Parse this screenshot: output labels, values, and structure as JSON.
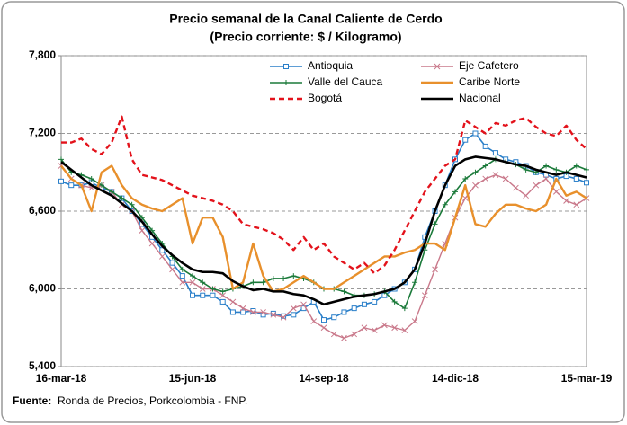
{
  "chart_data": {
    "type": "line",
    "title": "Precio semanal de la Canal Caliente de Cerdo",
    "subtitle": "(Precio corriente: $ / Kilogramo)",
    "source_label": "Fuente:",
    "source": "Ronda de Precios, Porkcolombia  - FNP.",
    "categories": [
      "16-mar-18",
      null,
      null,
      null,
      null,
      null,
      null,
      null,
      null,
      null,
      null,
      null,
      null,
      "15-jun-18",
      null,
      null,
      null,
      null,
      null,
      null,
      null,
      null,
      null,
      null,
      null,
      null,
      "14-sep-18",
      null,
      null,
      null,
      null,
      null,
      null,
      null,
      null,
      null,
      null,
      null,
      null,
      "14-dic-18",
      null,
      null,
      null,
      null,
      null,
      null,
      null,
      null,
      null,
      null,
      null,
      null,
      "15-mar-19"
    ],
    "ylim": [
      5400,
      7800
    ],
    "yticks": [
      {
        "value": 5400,
        "label": "5,400"
      },
      {
        "value": 6000,
        "label": "6,000"
      },
      {
        "value": 6600,
        "label": "6,600"
      },
      {
        "value": 7200,
        "label": "7,200"
      },
      {
        "value": 7800,
        "label": "7,800"
      }
    ],
    "grid": true,
    "legend": "top-right",
    "series": [
      {
        "name": "Antioquia",
        "color": "#2a7fc9",
        "marker": "square",
        "dash": false,
        "width": 1.6,
        "values": [
          6830,
          6800,
          6800,
          6820,
          6780,
          6750,
          6700,
          6600,
          6500,
          6400,
          6300,
          6200,
          6100,
          5950,
          5950,
          5950,
          5900,
          5820,
          5820,
          5830,
          5800,
          5810,
          5790,
          5800,
          5850,
          5900,
          5760,
          5780,
          5820,
          5850,
          5880,
          5900,
          5950,
          6000,
          6050,
          6150,
          6400,
          6600,
          6800,
          7000,
          7150,
          7200,
          7100,
          7050,
          7000,
          6980,
          6950,
          6900,
          6880,
          6850,
          6870,
          6850,
          6820
        ]
      },
      {
        "name": "Eje Cafetero",
        "color": "#c9788a",
        "marker": "x",
        "dash": false,
        "width": 1.4,
        "values": [
          6950,
          6850,
          6800,
          6780,
          6800,
          6750,
          6650,
          6600,
          6450,
          6350,
          6250,
          6150,
          6050,
          6050,
          6000,
          6000,
          5950,
          5900,
          5850,
          5820,
          5820,
          5800,
          5780,
          5850,
          5880,
          5750,
          5700,
          5650,
          5620,
          5650,
          5700,
          5680,
          5720,
          5700,
          5680,
          5750,
          5950,
          6150,
          6350,
          6550,
          6700,
          6800,
          6850,
          6880,
          6850,
          6780,
          6720,
          6800,
          6850,
          6750,
          6680,
          6650,
          6700
        ]
      },
      {
        "name": "Valle del Cauca",
        "color": "#1b7a3a",
        "marker": "plus",
        "dash": false,
        "width": 1.6,
        "values": [
          7000,
          6900,
          6880,
          6850,
          6800,
          6750,
          6700,
          6650,
          6550,
          6450,
          6350,
          6250,
          6150,
          6100,
          6050,
          6000,
          5980,
          6000,
          6020,
          6050,
          6050,
          6080,
          6080,
          6100,
          6080,
          6050,
          6000,
          6000,
          5980,
          5950,
          5950,
          5960,
          5980,
          5900,
          5850,
          6050,
          6300,
          6500,
          6650,
          6750,
          6850,
          6900,
          6950,
          7000,
          6980,
          6960,
          6920,
          6900,
          6950,
          6920,
          6900,
          6950,
          6920
        ]
      },
      {
        "name": "Caribe Norte",
        "color": "#e8902c",
        "marker": "none",
        "dash": false,
        "width": 2.4,
        "values": [
          6950,
          6850,
          6800,
          6600,
          6900,
          6950,
          6800,
          6700,
          6650,
          6620,
          6600,
          6650,
          6700,
          6350,
          6550,
          6550,
          6400,
          6000,
          6050,
          6350,
          6100,
          5980,
          6000,
          6050,
          6100,
          6050,
          6000,
          6000,
          6050,
          6100,
          6150,
          6200,
          6250,
          6250,
          6280,
          6300,
          6350,
          6350,
          6300,
          6550,
          6800,
          6500,
          6480,
          6580,
          6650,
          6650,
          6620,
          6600,
          6650,
          6850,
          6720,
          6750,
          6700
        ]
      },
      {
        "name": "Bogotá",
        "color": "#e3121b",
        "marker": "none",
        "dash": true,
        "width": 2.4,
        "values": [
          7130,
          7130,
          7160,
          7080,
          7040,
          7130,
          7330,
          7000,
          6880,
          6860,
          6840,
          6800,
          6760,
          6720,
          6700,
          6680,
          6650,
          6600,
          6500,
          6480,
          6460,
          6430,
          6380,
          6300,
          6400,
          6300,
          6350,
          6250,
          6200,
          6150,
          6200,
          6120,
          6180,
          6300,
          6450,
          6600,
          6750,
          6850,
          6950,
          7000,
          7300,
          7250,
          7200,
          7280,
          7260,
          7300,
          7320,
          7250,
          7200,
          7180,
          7260,
          7150,
          7080
        ]
      },
      {
        "name": "Nacional",
        "color": "#000000",
        "marker": "none",
        "dash": false,
        "width": 2.6,
        "values": [
          6980,
          6920,
          6860,
          6800,
          6760,
          6720,
          6660,
          6600,
          6520,
          6420,
          6330,
          6260,
          6200,
          6150,
          6130,
          6130,
          6120,
          6060,
          6020,
          5990,
          6000,
          5980,
          5980,
          5960,
          5950,
          5920,
          5880,
          5900,
          5920,
          5940,
          5950,
          5960,
          5980,
          6000,
          6050,
          6150,
          6350,
          6600,
          6800,
          6950,
          7000,
          7020,
          7010,
          7000,
          6980,
          6960,
          6950,
          6920,
          6900,
          6880,
          6900,
          6880,
          6860
        ]
      }
    ]
  }
}
